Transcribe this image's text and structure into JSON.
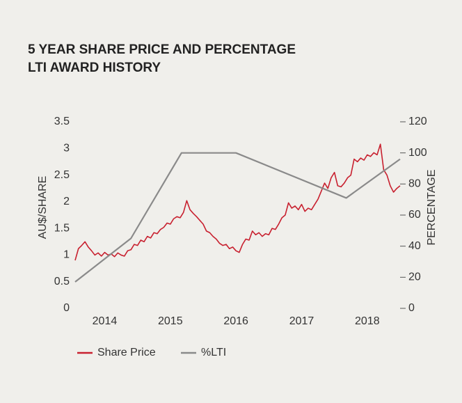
{
  "chart_data": {
    "type": "line",
    "title": [
      "5 YEAR SHARE PRICE AND PERCENTAGE",
      "LTI AWARD HISTORY"
    ],
    "y_label": "AU$/SHARE",
    "y2_label": "PERCENTAGE",
    "xlim": [
      2013.55,
      2018.5
    ],
    "xticks": [
      2014,
      2015,
      2016,
      2017,
      2018
    ],
    "ylim": [
      0,
      3.5
    ],
    "yticks": [
      0,
      0.5,
      1,
      1.5,
      2,
      2.5,
      3,
      3.5
    ],
    "y2lim": [
      0,
      120
    ],
    "y2ticks": [
      0,
      20,
      40,
      60,
      80,
      100,
      120
    ],
    "grid": false,
    "legend": "bottom",
    "series": [
      {
        "name": "Share Price",
        "color": "#c8202f",
        "x": [
          2013.55,
          2013.6,
          2013.65,
          2013.7,
          2013.75,
          2013.8,
          2013.85,
          2013.9,
          2013.95,
          2014.0,
          2014.05,
          2014.1,
          2014.15,
          2014.2,
          2014.25,
          2014.3,
          2014.35,
          2014.4,
          2014.45,
          2014.5,
          2014.55,
          2014.6,
          2014.65,
          2014.7,
          2014.75,
          2014.8,
          2014.85,
          2014.9,
          2014.95,
          2015.0,
          2015.05,
          2015.1,
          2015.15,
          2015.2,
          2015.25,
          2015.3,
          2015.35,
          2015.4,
          2015.45,
          2015.5,
          2015.55,
          2015.6,
          2015.65,
          2015.7,
          2015.75,
          2015.8,
          2015.85,
          2015.9,
          2015.95,
          2016.0,
          2016.05,
          2016.1,
          2016.15,
          2016.2,
          2016.25,
          2016.3,
          2016.35,
          2016.4,
          2016.45,
          2016.5,
          2016.55,
          2016.6,
          2016.65,
          2016.7,
          2016.75,
          2016.8,
          2016.85,
          2016.9,
          2016.95,
          2017.0,
          2017.05,
          2017.1,
          2017.15,
          2017.2,
          2017.25,
          2017.3,
          2017.35,
          2017.4,
          2017.45,
          2017.5,
          2017.55,
          2017.6,
          2017.65,
          2017.7,
          2017.75,
          2017.8,
          2017.85,
          2017.9,
          2017.95,
          2018.0,
          2018.05,
          2018.1,
          2018.15,
          2018.2,
          2018.25,
          2018.3,
          2018.35,
          2018.4,
          2018.45,
          2018.5
        ],
        "values": [
          0.9,
          1.12,
          1.18,
          1.25,
          1.15,
          1.08,
          1.0,
          1.04,
          0.98,
          1.05,
          1.0,
          1.02,
          0.97,
          1.04,
          1.0,
          0.98,
          1.08,
          1.1,
          1.2,
          1.18,
          1.28,
          1.25,
          1.35,
          1.32,
          1.42,
          1.4,
          1.48,
          1.52,
          1.6,
          1.58,
          1.68,
          1.72,
          1.7,
          1.8,
          2.02,
          1.85,
          1.78,
          1.72,
          1.65,
          1.58,
          1.45,
          1.42,
          1.35,
          1.3,
          1.22,
          1.18,
          1.2,
          1.12,
          1.15,
          1.08,
          1.05,
          1.2,
          1.3,
          1.28,
          1.45,
          1.38,
          1.42,
          1.35,
          1.4,
          1.38,
          1.5,
          1.48,
          1.58,
          1.7,
          1.75,
          1.98,
          1.88,
          1.92,
          1.85,
          1.95,
          1.82,
          1.88,
          1.85,
          1.95,
          2.05,
          2.2,
          2.35,
          2.25,
          2.45,
          2.55,
          2.3,
          2.28,
          2.35,
          2.45,
          2.5,
          2.8,
          2.75,
          2.82,
          2.78,
          2.88,
          2.85,
          2.92,
          2.88,
          3.08,
          2.6,
          2.5,
          2.3,
          2.18,
          2.25,
          2.3
        ]
      },
      {
        "name": "%LTI",
        "color": "#8a8a8a",
        "axis": "y2",
        "x": [
          2013.55,
          2014.4,
          2015.17,
          2016.0,
          2017.68,
          2018.5
        ],
        "values": [
          17,
          45,
          100,
          100,
          71,
          96
        ]
      }
    ]
  }
}
